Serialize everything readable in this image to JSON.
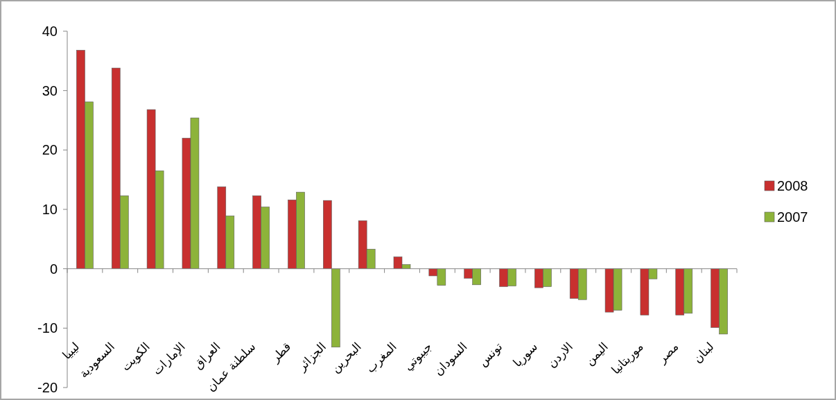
{
  "chart_data": {
    "type": "bar",
    "categories": [
      "ليبيا",
      "السعودية",
      "الكويت",
      "الإمارات",
      "العراق",
      "سلطنة عمان",
      "قطر",
      "الجزائر",
      "البحرين",
      "المغرب",
      "جيبوتي",
      "السودان",
      "تونس",
      "سوريا",
      "الاردن",
      "اليمن",
      "موريتانيا",
      "مصر",
      "لبنان"
    ],
    "series": [
      {
        "name": "2008",
        "color": "#c8302f",
        "values": [
          36.8,
          33.8,
          26.8,
          22.0,
          13.8,
          12.3,
          11.6,
          11.5,
          8.1,
          2.0,
          -1.2,
          -1.6,
          -3.0,
          -3.2,
          -5.0,
          -7.3,
          -7.8,
          -7.8,
          -9.9
        ]
      },
      {
        "name": "2007",
        "color": "#8db33a",
        "values": [
          28.1,
          12.3,
          16.5,
          25.4,
          8.9,
          10.4,
          12.9,
          -13.2,
          3.3,
          0.7,
          -2.8,
          -2.7,
          -2.9,
          -3.0,
          -5.2,
          -7.0,
          -1.7,
          -7.5,
          -11.0
        ]
      }
    ],
    "ylim": [
      -20,
      40
    ],
    "yticks": [
      -20,
      -10,
      0,
      10,
      20,
      30,
      40
    ],
    "legend": "right"
  }
}
